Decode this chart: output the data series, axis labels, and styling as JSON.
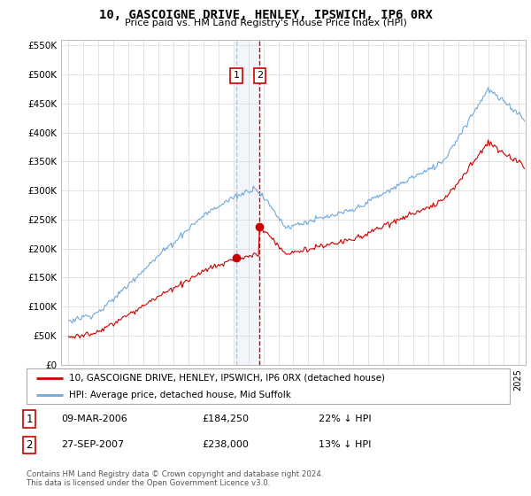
{
  "title": "10, GASCOIGNE DRIVE, HENLEY, IPSWICH, IP6 0RX",
  "subtitle": "Price paid vs. HM Land Registry's House Price Index (HPI)",
  "legend_line1": "10, GASCOIGNE DRIVE, HENLEY, IPSWICH, IP6 0RX (detached house)",
  "legend_line2": "HPI: Average price, detached house, Mid Suffolk",
  "footer1": "Contains HM Land Registry data © Crown copyright and database right 2024.",
  "footer2": "This data is licensed under the Open Government Licence v3.0.",
  "transaction1_date": "09-MAR-2006",
  "transaction1_price": "£184,250",
  "transaction1_hpi": "22% ↓ HPI",
  "transaction2_date": "27-SEP-2007",
  "transaction2_price": "£238,000",
  "transaction2_hpi": "13% ↓ HPI",
  "transaction1_x": 2006.19,
  "transaction1_y": 184250,
  "transaction2_x": 2007.74,
  "transaction2_y": 238000,
  "hpi_color": "#6fa8dc",
  "price_color": "#cc0000",
  "vline1_color": "#aac4e0",
  "vline2_color": "#cc0000",
  "ylim": [
    0,
    560000
  ],
  "xlim": [
    1994.5,
    2025.5
  ],
  "yticks": [
    0,
    50000,
    100000,
    150000,
    200000,
    250000,
    300000,
    350000,
    400000,
    450000,
    500000,
    550000
  ],
  "background_color": "#ffffff",
  "plot_bg_color": "#ffffff",
  "grid_color": "#dddddd"
}
